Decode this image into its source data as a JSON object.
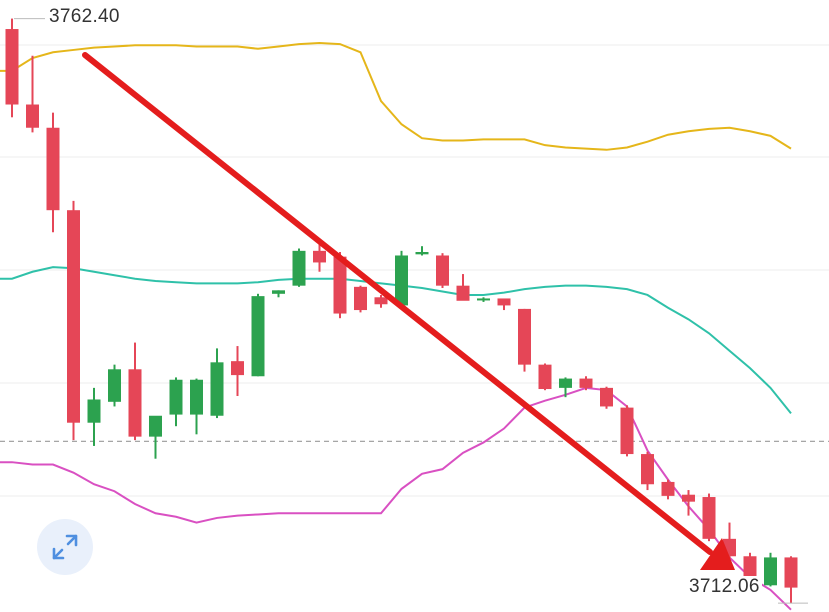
{
  "chart_data": {
    "type": "candlestick",
    "high_marker": "3762.40",
    "low_marker": "3712.06",
    "up_color": "#2ca24f",
    "down_color": "#e54657",
    "middle_band_color": "#2fc1a9",
    "upper_band_color": "#e5b61a",
    "lower_band_color": "#d950c2",
    "arrow_color": "#e41d1d",
    "candles": [
      {
        "o": 3761.5,
        "h": 3762.4,
        "l": 3753.9,
        "c": 3755.0
      },
      {
        "o": 3755.0,
        "h": 3759.2,
        "l": 3752.6,
        "c": 3753.0
      },
      {
        "o": 3753.0,
        "h": 3754.3,
        "l": 3744.0,
        "c": 3745.9
      },
      {
        "o": 3745.9,
        "h": 3746.7,
        "l": 3726.1,
        "c": 3727.6
      },
      {
        "o": 3727.6,
        "h": 3730.6,
        "l": 3725.6,
        "c": 3729.6
      },
      {
        "o": 3729.4,
        "h": 3732.6,
        "l": 3729.0,
        "c": 3732.2
      },
      {
        "o": 3732.2,
        "h": 3734.5,
        "l": 3726.1,
        "c": 3726.4
      },
      {
        "o": 3726.4,
        "h": 3727.9,
        "l": 3724.5,
        "c": 3728.2
      },
      {
        "o": 3728.3,
        "h": 3731.5,
        "l": 3727.3,
        "c": 3731.3
      },
      {
        "o": 3728.3,
        "h": 3731.4,
        "l": 3726.6,
        "c": 3731.3
      },
      {
        "o": 3728.2,
        "h": 3734.0,
        "l": 3728.0,
        "c": 3732.8
      },
      {
        "o": 3732.9,
        "h": 3734.2,
        "l": 3729.9,
        "c": 3731.7
      },
      {
        "o": 3731.6,
        "h": 3738.7,
        "l": 3731.6,
        "c": 3738.5
      },
      {
        "o": 3738.7,
        "h": 3739.0,
        "l": 3738.4,
        "c": 3739.0
      },
      {
        "o": 3739.4,
        "h": 3742.6,
        "l": 3739.3,
        "c": 3742.4
      },
      {
        "o": 3742.4,
        "h": 3743.4,
        "l": 3740.6,
        "c": 3741.4
      },
      {
        "o": 3741.9,
        "h": 3742.3,
        "l": 3736.6,
        "c": 3737.0
      },
      {
        "o": 3739.3,
        "h": 3739.4,
        "l": 3737.1,
        "c": 3737.3
      },
      {
        "o": 3738.4,
        "h": 3738.6,
        "l": 3737.5,
        "c": 3737.8
      },
      {
        "o": 3737.7,
        "h": 3742.4,
        "l": 3737.6,
        "c": 3742.0
      },
      {
        "o": 3742.1,
        "h": 3742.8,
        "l": 3742.0,
        "c": 3742.3
      },
      {
        "o": 3742.0,
        "h": 3742.2,
        "l": 3739.2,
        "c": 3739.4
      },
      {
        "o": 3739.4,
        "h": 3740.4,
        "l": 3738.4,
        "c": 3738.1
      },
      {
        "o": 3738.3,
        "h": 3738.4,
        "l": 3738.0,
        "c": 3738.3
      },
      {
        "o": 3738.3,
        "h": 3738.2,
        "l": 3737.3,
        "c": 3737.7
      },
      {
        "o": 3737.4,
        "h": 3737.4,
        "l": 3732.0,
        "c": 3732.6
      },
      {
        "o": 3732.6,
        "h": 3732.7,
        "l": 3730.4,
        "c": 3730.5
      },
      {
        "o": 3730.6,
        "h": 3731.5,
        "l": 3729.8,
        "c": 3731.4
      },
      {
        "o": 3731.4,
        "h": 3731.6,
        "l": 3730.4,
        "c": 3730.6
      },
      {
        "o": 3730.6,
        "h": 3730.7,
        "l": 3728.8,
        "c": 3729.0
      },
      {
        "o": 3728.9,
        "h": 3729.1,
        "l": 3724.7,
        "c": 3724.9
      },
      {
        "o": 3724.9,
        "h": 3725.1,
        "l": 3721.8,
        "c": 3722.3
      },
      {
        "o": 3722.5,
        "h": 3722.7,
        "l": 3721.0,
        "c": 3721.3
      },
      {
        "o": 3721.4,
        "h": 3721.8,
        "l": 3719.6,
        "c": 3720.8
      },
      {
        "o": 3721.2,
        "h": 3721.5,
        "l": 3717.4,
        "c": 3717.6
      },
      {
        "o": 3717.6,
        "h": 3719.0,
        "l": 3715.7,
        "c": 3716.1
      },
      {
        "o": 3716.1,
        "h": 3716.4,
        "l": 3713.2,
        "c": 3713.5
      },
      {
        "o": 3713.6,
        "h": 3716.4,
        "l": 3713.5,
        "c": 3716.0
      },
      {
        "o": 3716.0,
        "h": 3716.1,
        "l": 3712.06,
        "c": 3713.4
      }
    ],
    "upper_band": [
      3757.9,
      3759.0,
      3759.5,
      3759.7,
      3759.9,
      3760.0,
      3760.1,
      3760.1,
      3760.1,
      3760.0,
      3760.0,
      3760.0,
      3759.8,
      3760.0,
      3760.2,
      3760.3,
      3760.2,
      3759.5,
      3755.3,
      3753.3,
      3752.1,
      3751.9,
      3751.9,
      3752.0,
      3752.0,
      3752.0,
      3751.5,
      3751.3,
      3751.2,
      3751.1,
      3751.3,
      3751.8,
      3752.4,
      3752.7,
      3752.9,
      3753.0,
      3752.7,
      3752.3,
      3751.2
    ],
    "middle_band": [
      3740.0,
      3740.6,
      3741.0,
      3740.9,
      3740.6,
      3740.3,
      3740.0,
      3739.8,
      3739.7,
      3739.6,
      3739.6,
      3739.6,
      3739.7,
      3739.9,
      3740.0,
      3740.0,
      3740.0,
      3739.8,
      3739.6,
      3739.4,
      3739.2,
      3738.9,
      3738.6,
      3738.6,
      3738.8,
      3739.1,
      3739.3,
      3739.4,
      3739.4,
      3739.3,
      3739.1,
      3738.6,
      3737.5,
      3736.5,
      3735.3,
      3733.8,
      3732.3,
      3730.6,
      3728.4
    ],
    "lower_band": [
      3724.2,
      3724.0,
      3724.0,
      3723.3,
      3722.3,
      3721.7,
      3720.6,
      3719.8,
      3719.5,
      3719.0,
      3719.4,
      3719.6,
      3719.7,
      3719.8,
      3719.8,
      3719.8,
      3719.8,
      3719.8,
      3719.8,
      3721.9,
      3723.2,
      3723.6,
      3725.0,
      3725.9,
      3727.1,
      3728.9,
      3729.5,
      3730.0,
      3730.6,
      3730.4,
      3729.0,
      3725.2,
      3722.7,
      3720.4,
      3718.4,
      3716.0,
      3714.3,
      3713.2,
      3711.5
    ],
    "dashed_level": 3726.0,
    "ylim": [
      3711.3,
      3764.0
    ],
    "grid": true
  },
  "ui": {
    "expand_icon": "expand-diagonal-icon"
  }
}
